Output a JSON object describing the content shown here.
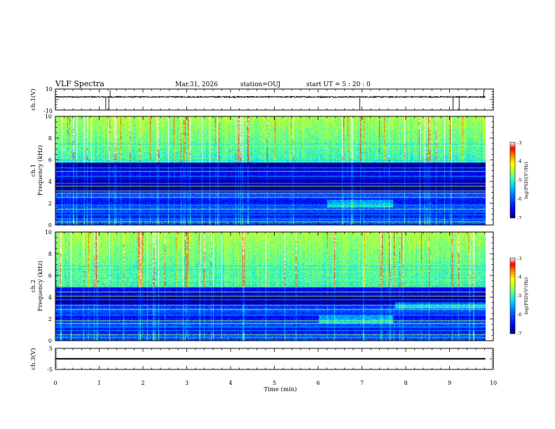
{
  "header": {
    "title": "VLF Spectra",
    "date": "Mar.31, 2026",
    "station": "station=OUJ",
    "start_ut": "start  UT =  5 : 20 : 0"
  },
  "colors": {
    "background": "#ffffff",
    "trace": "#000000",
    "colormap": [
      "#00007a",
      "#0000ff",
      "#0070ff",
      "#00d0ff",
      "#40ffb0",
      "#b0ff40",
      "#ffff00",
      "#ff9000",
      "#ff0000",
      "#ffffff"
    ]
  },
  "chart_data": [
    {
      "type": "line",
      "name": "ch1-waveform",
      "ylabel": "ch.1(V)",
      "ylim": [
        -10,
        10
      ],
      "yticks": [
        "10",
        "-10"
      ],
      "xlim": [
        0,
        10
      ],
      "baseline_value": 2.5,
      "noise_amplitude": 0.6,
      "negative_spikes_at_min": [
        1.15,
        1.22,
        6.95,
        9.08,
        9.22
      ],
      "positive_spikes_at_min": [
        1.25,
        9.78
      ]
    },
    {
      "type": "heatmap",
      "name": "ch1-spectrogram",
      "ylabel_line1": "ch.1",
      "ylabel_line2": "Frequency (kHz)",
      "ylim_khz": [
        0,
        10
      ],
      "yticks": [
        "0",
        "2",
        "4",
        "6",
        "8",
        "10"
      ],
      "xlim_min": [
        0,
        9.82
      ],
      "colorbar": {
        "label": "log(PSD)(V²/Hz)",
        "range": [
          -7,
          -3
        ],
        "ticks": [
          "-3",
          "-4",
          "-5",
          "-6",
          "-7"
        ]
      },
      "features": {
        "quiet_band_khz": [
          3.0,
          5.8
        ],
        "noisy_band_khz": [
          5.8,
          10
        ],
        "low_band_khz": [
          0,
          3.0
        ],
        "band_2khz_enhancement_min": [
          6.2,
          7.7
        ],
        "horizontal_lines_khz": [
          0.3,
          0.6,
          1.0,
          1.25,
          1.5,
          1.85,
          2.6,
          3.0,
          3.15,
          3.6,
          3.9,
          4.5,
          5.0,
          5.3,
          6.0,
          7.3,
          7.5
        ]
      }
    },
    {
      "type": "heatmap",
      "name": "ch2-spectrogram",
      "ylabel_line1": "ch.2",
      "ylabel_line2": "Frequency (kHz)",
      "ylim_khz": [
        0,
        10
      ],
      "yticks": [
        "0",
        "2",
        "4",
        "6",
        "8",
        "10"
      ],
      "xlim_min": [
        0,
        9.82
      ],
      "colorbar": {
        "label": "log(PSD)(V²/Hz)",
        "range": [
          -7,
          -3
        ],
        "ticks": [
          "-3",
          "-4",
          "-5",
          "-6",
          "-7"
        ]
      },
      "features": {
        "quiet_band_khz": [
          3.4,
          5.0
        ],
        "noisy_band_khz": [
          5.0,
          10
        ],
        "low_band_khz": [
          0,
          3.4
        ],
        "band_2khz_enhancement_min": [
          6.0,
          7.7
        ],
        "band_3p3khz_enhancement_min": [
          7.75,
          9.82
        ],
        "horizontal_lines_khz": [
          0.3,
          0.6,
          1.0,
          1.3,
          1.6,
          1.9,
          2.4,
          2.9,
          3.3,
          3.8,
          4.1,
          4.5,
          5.0,
          5.6,
          6.6,
          6.9
        ]
      }
    },
    {
      "type": "line",
      "name": "ch3-waveform",
      "ylabel": "ch.3(V)",
      "ylim": [
        -5,
        5
      ],
      "yticks": [
        "5",
        "-5"
      ],
      "xlim": [
        0,
        10
      ],
      "baseline_value": 0.1,
      "band_thickness_v": 0.6
    },
    {
      "type": "axis",
      "name": "time-axis",
      "xlabel": "Time  (min)",
      "xlim": [
        0,
        10
      ],
      "xticks": [
        "0",
        "1",
        "2",
        "3",
        "4",
        "5",
        "6",
        "7",
        "8",
        "9",
        "10"
      ]
    }
  ]
}
